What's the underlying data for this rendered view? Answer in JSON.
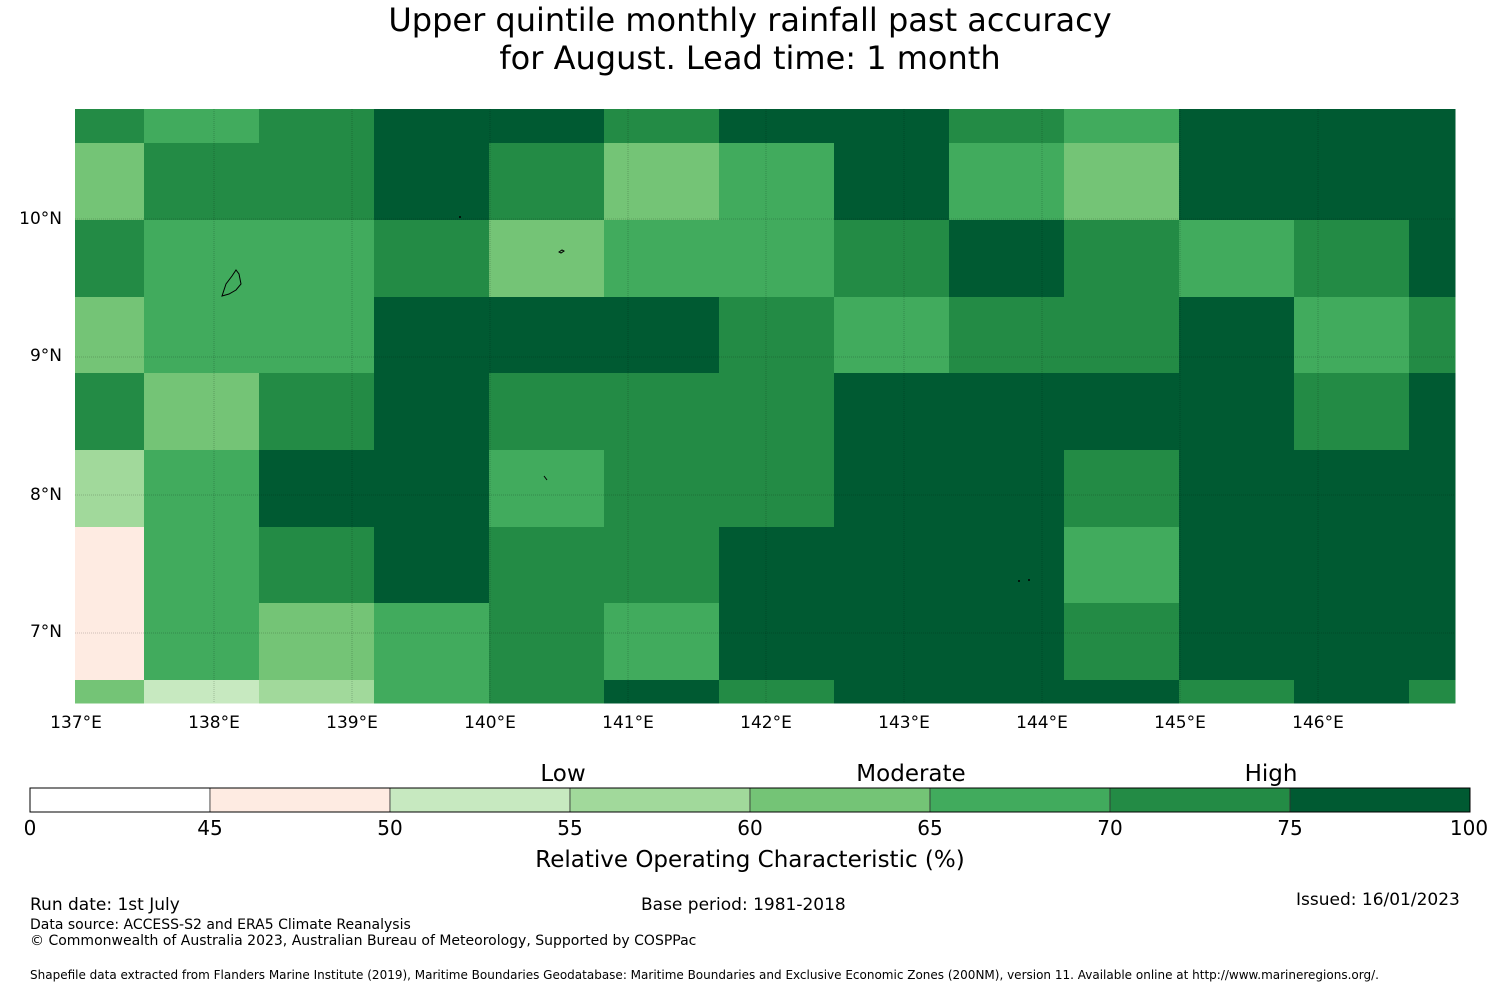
{
  "title_line1": "Upper quintile monthly rainfall past accuracy",
  "title_line2": "for August. Lead time: 1 month",
  "map": {
    "lon_range": [
      137.0,
      147.0
    ],
    "lat_range": [
      6.5,
      10.8
    ],
    "lat_labels": [
      "10°N",
      "9°N",
      "8°N",
      "7°N"
    ],
    "lon_labels": [
      "137°E",
      "138°E",
      "139°E",
      "140°E",
      "141°E",
      "142°E",
      "143°E",
      "144°E",
      "145°E",
      "146°E"
    ],
    "category_colors": [
      "#ffffff",
      "#feebe2",
      "#c7e9c0",
      "#a1d99b",
      "#74c476",
      "#41ab5d",
      "#238b45",
      "#005a32"
    ],
    "grid_rows_top_to_bottom": [
      [
        6,
        5,
        6,
        7,
        7,
        6,
        7,
        7,
        6,
        5,
        7,
        7
      ],
      [
        4,
        6,
        6,
        7,
        6,
        4,
        5,
        7,
        5,
        4,
        7,
        7
      ],
      [
        6,
        5,
        5,
        6,
        4,
        5,
        5,
        6,
        7,
        6,
        5,
        6,
        7
      ],
      [
        4,
        5,
        5,
        7,
        7,
        7,
        6,
        5,
        6,
        6,
        7,
        5,
        6
      ],
      [
        6,
        4,
        6,
        7,
        6,
        6,
        6,
        7,
        7,
        7,
        7,
        6,
        7
      ],
      [
        3,
        5,
        7,
        7,
        5,
        6,
        6,
        7,
        7,
        6,
        7,
        7,
        7
      ],
      [
        1,
        5,
        6,
        7,
        6,
        6,
        7,
        7,
        7,
        5,
        7,
        7,
        7
      ],
      [
        1,
        5,
        4,
        5,
        6,
        5,
        7,
        7,
        7,
        6,
        7,
        7,
        7
      ],
      [
        4,
        2,
        3,
        5,
        6,
        7,
        6,
        7,
        7,
        7,
        6,
        7,
        6
      ]
    ]
  },
  "colorbar": {
    "ticks": [
      "0",
      "45",
      "50",
      "55",
      "60",
      "65",
      "70",
      "75",
      "100"
    ],
    "colors": [
      "#ffffff",
      "#feebe2",
      "#c7e9c0",
      "#a1d99b",
      "#74c476",
      "#41ab5d",
      "#238b45",
      "#005a32"
    ],
    "categories": [
      "Low",
      "Moderate",
      "High"
    ],
    "label": "Relative Operating Characteristic (%)"
  },
  "footer": {
    "run_date": "Run date: 1st July",
    "base_period": "Base period: 1981-2018",
    "issued": "Issued: 16/01/2023",
    "data_source": "Data source: ACCESS-S2 and ERA5 Climate Reanalysis",
    "copyright": "© Commonwealth of Australia 2023, Australian Bureau of Meteorology, Supported by COSPPac",
    "shapefile": "Shapefile data extracted from Flanders Marine Institute (2019), Maritime Boundaries Geodatabase: Maritime Boundaries and Exclusive Economic Zones (200NM), version 11. Available online at http://www.marineregions.org/."
  }
}
